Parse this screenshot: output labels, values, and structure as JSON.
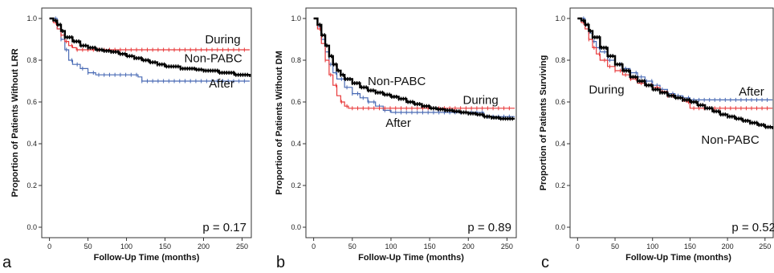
{
  "chart_data": [
    {
      "type": "line",
      "panel_label": "a",
      "xlabel": "Follow-Up Time (months)",
      "ylabel": "Proportion of Patients Without LRR",
      "xlim": [
        -10,
        262
      ],
      "ylim": [
        -0.05,
        1.05
      ],
      "xticks": [
        0,
        50,
        100,
        150,
        200,
        250
      ],
      "yticks": [
        0.0,
        0.2,
        0.4,
        0.6,
        0.8,
        1.0
      ],
      "xtick_labels": [
        "0",
        "50",
        "100",
        "150",
        "200",
        "250"
      ],
      "ytick_labels": [
        "0.0",
        "0.2",
        "0.4",
        "0.6",
        "0.8",
        "1.0"
      ],
      "p_value": "p = 0.17",
      "grid": false,
      "series": [
        {
          "name": "During",
          "color": "#e8393a",
          "width": 1.2,
          "x": [
            0,
            5,
            10,
            15,
            20,
            25,
            30,
            35,
            260
          ],
          "y": [
            1.0,
            0.98,
            0.95,
            0.92,
            0.89,
            0.87,
            0.86,
            0.85,
            0.85
          ]
        },
        {
          "name": "Non-PABC",
          "color": "#000000",
          "width": 2.4,
          "x": [
            0,
            5,
            10,
            15,
            20,
            30,
            40,
            50,
            60,
            70,
            80,
            90,
            100,
            110,
            120,
            130,
            140,
            150,
            160,
            170,
            180,
            190,
            200,
            210,
            220,
            230,
            240,
            250,
            260
          ],
          "y": [
            1.0,
            0.99,
            0.97,
            0.94,
            0.91,
            0.89,
            0.87,
            0.86,
            0.85,
            0.845,
            0.84,
            0.83,
            0.82,
            0.81,
            0.8,
            0.79,
            0.78,
            0.77,
            0.77,
            0.76,
            0.76,
            0.755,
            0.75,
            0.75,
            0.74,
            0.74,
            0.73,
            0.73,
            0.72
          ]
        },
        {
          "name": "After",
          "color": "#4a6bb5",
          "width": 1.2,
          "x": [
            0,
            10,
            15,
            20,
            25,
            30,
            40,
            50,
            60,
            115,
            120,
            260
          ],
          "y": [
            1.0,
            0.95,
            0.9,
            0.85,
            0.8,
            0.78,
            0.76,
            0.74,
            0.73,
            0.72,
            0.7,
            0.7
          ]
        }
      ],
      "annotations": [
        {
          "text": "During",
          "x": 202,
          "y": 0.88
        },
        {
          "text": "Non-PABC",
          "x": 175,
          "y": 0.79
        },
        {
          "text": "After",
          "x": 207,
          "y": 0.67
        }
      ],
      "colors": {
        "during": "#e8393a",
        "non_pabc": "#000000",
        "after": "#4a6bb5"
      }
    },
    {
      "type": "line",
      "panel_label": "b",
      "xlabel": "Follow-Up Time (months)",
      "ylabel": "Proportion of Patients Without DM",
      "xlim": [
        -10,
        262
      ],
      "ylim": [
        -0.05,
        1.05
      ],
      "xticks": [
        0,
        50,
        100,
        150,
        200,
        250
      ],
      "yticks": [
        0.0,
        0.2,
        0.4,
        0.6,
        0.8,
        1.0
      ],
      "xtick_labels": [
        "0",
        "50",
        "100",
        "150",
        "200",
        "250"
      ],
      "ytick_labels": [
        "0.0",
        "0.2",
        "0.4",
        "0.6",
        "0.8",
        "1.0"
      ],
      "p_value": "p = 0.89",
      "grid": false,
      "series": [
        {
          "name": "During",
          "color": "#e8393a",
          "width": 1.2,
          "x": [
            0,
            5,
            10,
            15,
            20,
            25,
            30,
            35,
            40,
            45,
            50,
            60,
            260
          ],
          "y": [
            1.0,
            0.95,
            0.88,
            0.8,
            0.73,
            0.68,
            0.63,
            0.6,
            0.58,
            0.57,
            0.57,
            0.57,
            0.57
          ]
        },
        {
          "name": "Non-PABC",
          "color": "#000000",
          "width": 2.4,
          "x": [
            0,
            5,
            10,
            15,
            20,
            25,
            30,
            35,
            40,
            50,
            60,
            70,
            80,
            90,
            100,
            110,
            120,
            130,
            140,
            150,
            160,
            170,
            180,
            190,
            200,
            210,
            220,
            230,
            240,
            250,
            260
          ],
          "y": [
            1.0,
            0.97,
            0.92,
            0.87,
            0.82,
            0.78,
            0.75,
            0.73,
            0.71,
            0.69,
            0.67,
            0.655,
            0.645,
            0.635,
            0.625,
            0.615,
            0.6,
            0.59,
            0.58,
            0.57,
            0.565,
            0.56,
            0.555,
            0.55,
            0.545,
            0.54,
            0.53,
            0.525,
            0.52,
            0.52,
            0.52
          ]
        },
        {
          "name": "After",
          "color": "#4a6bb5",
          "width": 1.2,
          "x": [
            0,
            5,
            10,
            15,
            20,
            25,
            30,
            40,
            50,
            60,
            70,
            80,
            90,
            100,
            110,
            200,
            220,
            260
          ],
          "y": [
            1.0,
            0.96,
            0.9,
            0.84,
            0.78,
            0.74,
            0.71,
            0.67,
            0.64,
            0.62,
            0.6,
            0.58,
            0.56,
            0.55,
            0.55,
            0.55,
            0.53,
            0.53
          ]
        }
      ],
      "annotations": [
        {
          "text": "Non-PABC",
          "x": 70,
          "y": 0.68
        },
        {
          "text": "During",
          "x": 193,
          "y": 0.59
        },
        {
          "text": "After",
          "x": 93,
          "y": 0.48
        }
      ],
      "colors": {
        "during": "#e8393a",
        "non_pabc": "#000000",
        "after": "#4a6bb5"
      }
    },
    {
      "type": "line",
      "panel_label": "c",
      "xlabel": "Follow-Up Time (months)",
      "ylabel": "Proportion of Patients Surviving",
      "xlim": [
        -10,
        262
      ],
      "ylim": [
        -0.05,
        1.05
      ],
      "xticks": [
        0,
        50,
        100,
        150,
        200,
        250
      ],
      "yticks": [
        0.0,
        0.2,
        0.4,
        0.6,
        0.8,
        1.0
      ],
      "xtick_labels": [
        "0",
        "50",
        "100",
        "150",
        "200",
        "250"
      ],
      "ytick_labels": [
        "0.0",
        "0.2",
        "0.4",
        "0.6",
        "0.8",
        "1.0"
      ],
      "p_value": "p = 0.52",
      "grid": false,
      "series": [
        {
          "name": "During",
          "color": "#e8393a",
          "width": 1.2,
          "x": [
            0,
            5,
            10,
            15,
            20,
            25,
            30,
            40,
            50,
            60,
            70,
            80,
            90,
            100,
            110,
            120,
            130,
            140,
            145,
            150,
            260
          ],
          "y": [
            1.0,
            0.98,
            0.95,
            0.9,
            0.86,
            0.83,
            0.8,
            0.77,
            0.75,
            0.73,
            0.71,
            0.69,
            0.68,
            0.67,
            0.65,
            0.63,
            0.62,
            0.61,
            0.6,
            0.57,
            0.57
          ]
        },
        {
          "name": "Non-PABC",
          "color": "#000000",
          "width": 2.4,
          "x": [
            0,
            5,
            10,
            15,
            20,
            30,
            40,
            50,
            60,
            70,
            80,
            90,
            100,
            110,
            120,
            130,
            140,
            150,
            160,
            170,
            180,
            190,
            200,
            210,
            220,
            230,
            240,
            250,
            260
          ],
          "y": [
            1.0,
            0.99,
            0.97,
            0.94,
            0.91,
            0.86,
            0.82,
            0.78,
            0.75,
            0.72,
            0.7,
            0.68,
            0.66,
            0.645,
            0.63,
            0.62,
            0.61,
            0.6,
            0.585,
            0.57,
            0.555,
            0.54,
            0.53,
            0.52,
            0.51,
            0.5,
            0.49,
            0.48,
            0.47
          ]
        },
        {
          "name": "After",
          "color": "#4a6bb5",
          "width": 1.2,
          "x": [
            0,
            10,
            15,
            20,
            25,
            30,
            40,
            50,
            60,
            70,
            80,
            90,
            100,
            110,
            120,
            130,
            140,
            150,
            260
          ],
          "y": [
            1.0,
            0.97,
            0.93,
            0.89,
            0.86,
            0.84,
            0.8,
            0.78,
            0.76,
            0.74,
            0.72,
            0.7,
            0.68,
            0.66,
            0.64,
            0.63,
            0.62,
            0.61,
            0.61
          ]
        }
      ],
      "annotations": [
        {
          "text": "During",
          "x": 15,
          "y": 0.64
        },
        {
          "text": "After",
          "x": 215,
          "y": 0.63
        },
        {
          "text": "Non-PABC",
          "x": 165,
          "y": 0.4
        }
      ],
      "colors": {
        "during": "#e8393a",
        "non_pabc": "#000000",
        "after": "#4a6bb5"
      }
    }
  ]
}
